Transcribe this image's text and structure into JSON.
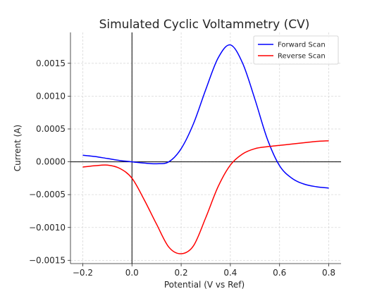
{
  "chart_data": {
    "type": "line",
    "title": "Simulated Cyclic Voltammetry (CV)",
    "xlabel": "Potential (V vs Ref)",
    "ylabel": "Current (A)",
    "xlim": [
      -0.25,
      0.85
    ],
    "ylim": [
      -0.00155,
      0.00197
    ],
    "x_ticks": [
      -0.2,
      0.0,
      0.2,
      0.4,
      0.6,
      0.8
    ],
    "x_tick_labels": [
      "−0.2",
      "0.0",
      "0.2",
      "0.4",
      "0.6",
      "0.8"
    ],
    "y_ticks": [
      -0.0015,
      -0.001,
      -0.0005,
      0.0,
      0.0005,
      0.001,
      0.0015
    ],
    "y_tick_labels": [
      "−0.0015",
      "−0.0010",
      "−0.0005",
      "0.0000",
      "0.0005",
      "0.0010",
      "0.0015"
    ],
    "grid": true,
    "legend_position": "top-right",
    "reference_lines": {
      "x": 0.0,
      "y": 0.0
    },
    "series": [
      {
        "name": "Forward Scan",
        "color": "#0000ff",
        "x": [
          -0.2,
          -0.15,
          -0.1,
          -0.05,
          0.0,
          0.05,
          0.1,
          0.15,
          0.2,
          0.25,
          0.3,
          0.35,
          0.4,
          0.45,
          0.5,
          0.55,
          0.6,
          0.65,
          0.7,
          0.75,
          0.8
        ],
        "y": [
          0.0001,
          8e-05,
          5e-05,
          2e-05,
          0.0,
          -2e-05,
          -3e-05,
          0.0,
          0.0002,
          0.00058,
          0.0011,
          0.00158,
          0.00178,
          0.0015,
          0.00095,
          0.00035,
          -6e-05,
          -0.00025,
          -0.00034,
          -0.00038,
          -0.0004
        ]
      },
      {
        "name": "Reverse Scan",
        "color": "#ff0000",
        "x": [
          -0.2,
          -0.15,
          -0.1,
          -0.05,
          0.0,
          0.05,
          0.1,
          0.15,
          0.2,
          0.25,
          0.3,
          0.35,
          0.4,
          0.45,
          0.5,
          0.55,
          0.6,
          0.65,
          0.7,
          0.75,
          0.8
        ],
        "y": [
          -8e-05,
          -6e-05,
          -5e-05,
          -0.0001,
          -0.00025,
          -0.00058,
          -0.00095,
          -0.0013,
          -0.0014,
          -0.00128,
          -0.00085,
          -0.00038,
          -5e-05,
          0.00012,
          0.0002,
          0.00023,
          0.00025,
          0.00027,
          0.00029,
          0.00031,
          0.00032
        ]
      }
    ]
  }
}
